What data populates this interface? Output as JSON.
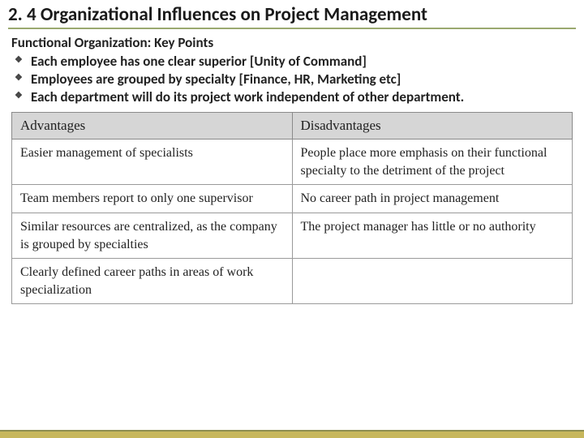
{
  "title": "2. 4 Organizational Influences on Project Management",
  "subtitle": "Functional Organization: Key Points",
  "bullets": [
    "Each employee has one clear superior [Unity of Command]",
    "Employees are grouped by specialty [Finance, HR, Marketing etc]",
    "Each department will do its project work independent of other department."
  ],
  "table": {
    "columns": [
      "Advantages",
      "Disadvantages"
    ],
    "rows": [
      [
        "Easier management of specialists",
        "People place more emphasis on their functional specialty to the detriment of the project"
      ],
      [
        "Team members report to only one supervisor",
        "No career path in project management"
      ],
      [
        "Similar resources are centralized, as the company is grouped by specialties",
        "The project manager has little or no authority"
      ],
      [
        "Clearly defined career paths in areas of work specialization",
        ""
      ]
    ]
  },
  "colors": {
    "title_underline": "#9aa96f",
    "header_bg": "#d6d6d6",
    "border": "#8a8a8a",
    "footer_bar": "#c7b75c",
    "footer_border": "#8e8e50"
  },
  "typography": {
    "title_fontsize": 23,
    "body_fontsize": 17,
    "table_fontsize": 16,
    "table_font": "serif"
  }
}
